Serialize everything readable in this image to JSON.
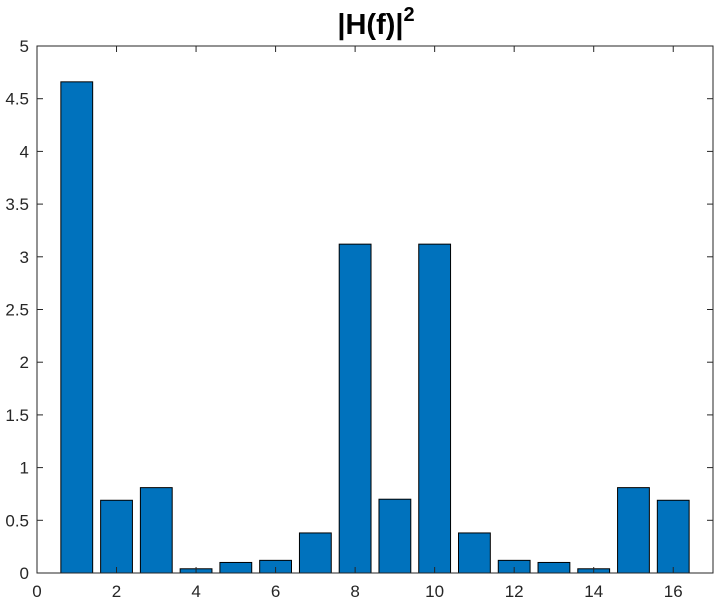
{
  "chart_data": {
    "type": "bar",
    "title": "|H(f)|",
    "title_superscript": "2",
    "xlabel": "",
    "ylabel": "",
    "x": [
      1,
      2,
      3,
      4,
      5,
      6,
      7,
      8,
      9,
      10,
      11,
      12,
      13,
      14,
      15,
      16
    ],
    "values": [
      4.66,
      0.69,
      0.81,
      0.04,
      0.1,
      0.12,
      0.38,
      3.12,
      0.7,
      3.12,
      0.38,
      0.12,
      0.1,
      0.04,
      0.81,
      0.69
    ],
    "xlim": [
      0,
      17
    ],
    "ylim": [
      0,
      5
    ],
    "xticks": [
      0,
      2,
      4,
      6,
      8,
      10,
      12,
      14,
      16
    ],
    "yticks": [
      0,
      0.5,
      1,
      1.5,
      2,
      2.5,
      3,
      3.5,
      4,
      4.5,
      5
    ],
    "xtick_labels": [
      "0",
      "2",
      "4",
      "6",
      "8",
      "10",
      "12",
      "14",
      "16"
    ],
    "ytick_labels": [
      "0",
      "0.5",
      "1",
      "1.5",
      "2",
      "2.5",
      "3",
      "3.5",
      "4",
      "4.5",
      "5"
    ],
    "bar_color": "#0072BD",
    "bar_edge_color": "#000000",
    "axis_color": "#262626",
    "grid": false,
    "legend": "none"
  }
}
